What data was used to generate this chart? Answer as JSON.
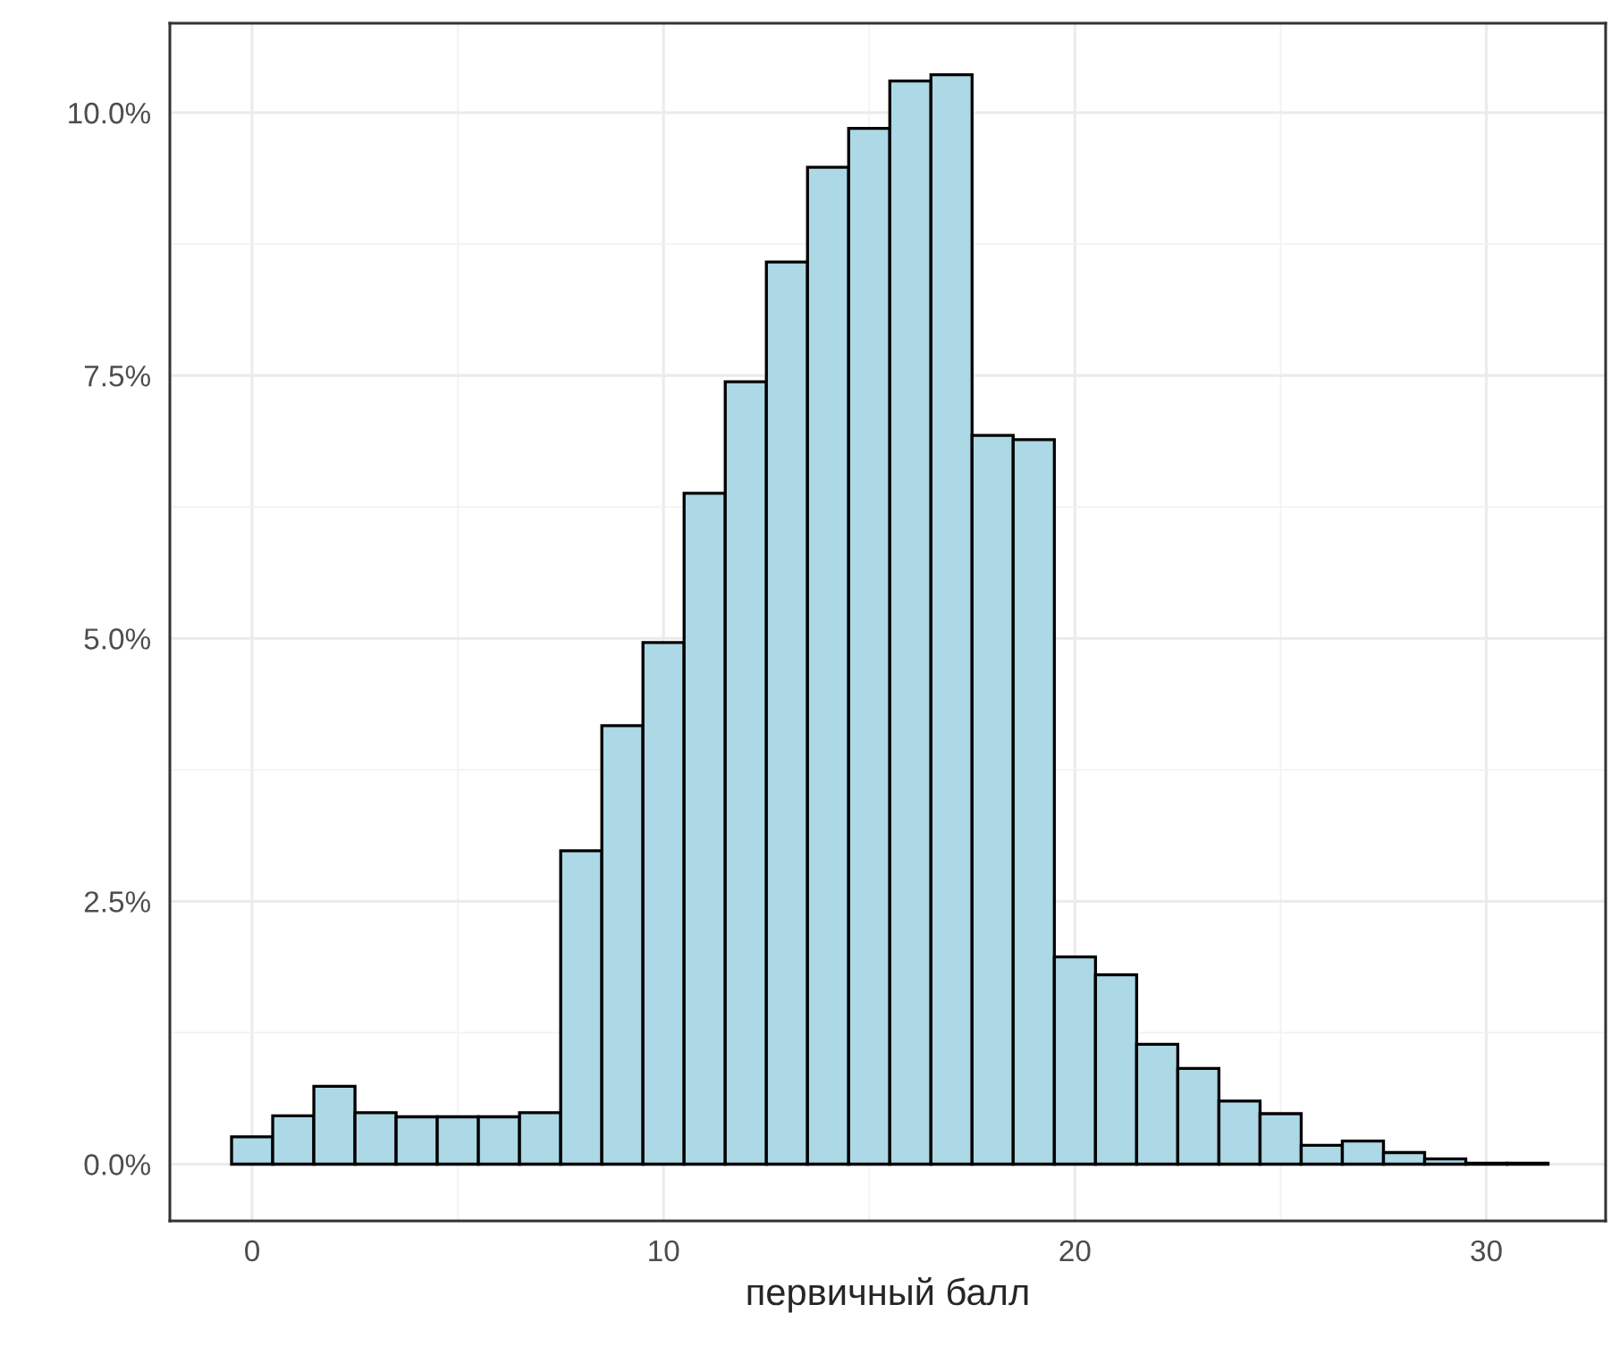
{
  "chart_data": {
    "type": "histogram",
    "xlabel": "первичный балл",
    "bins": [
      -0.5,
      0.5,
      1.5,
      2.5,
      3.5,
      4.5,
      5.5,
      6.5,
      7.5,
      8.5,
      9.5,
      10.5,
      11.5,
      12.5,
      13.5,
      14.5,
      15.5,
      16.5,
      17.5,
      18.5,
      19.5,
      20.5,
      21.5,
      22.5,
      23.5,
      24.5,
      25.5,
      26.5,
      27.5,
      28.5,
      29.5,
      30.5,
      31.5
    ],
    "values": [
      0.26,
      0.46,
      0.74,
      0.49,
      0.45,
      0.45,
      0.45,
      0.49,
      2.98,
      4.17,
      4.96,
      6.38,
      7.44,
      8.58,
      9.48,
      9.85,
      10.3,
      10.36,
      6.93,
      6.89,
      1.97,
      1.8,
      1.14,
      0.91,
      0.6,
      0.48,
      0.18,
      0.22,
      0.11,
      0.05,
      0.01,
      0.01
    ],
    "color": "#add8e6",
    "xlim": [
      -2.0,
      32.9
    ],
    "ylim": [
      -0.54,
      10.85
    ],
    "xticks": [
      0,
      10,
      20,
      30
    ],
    "yticks": [
      {
        "value": 0,
        "label": "0.0%"
      },
      {
        "value": 2.5,
        "label": "2.5%"
      },
      {
        "value": 5,
        "label": "5.0%"
      },
      {
        "value": 7.5,
        "label": "7.5%"
      },
      {
        "value": 10,
        "label": "10.0%"
      }
    ],
    "grid": true
  }
}
